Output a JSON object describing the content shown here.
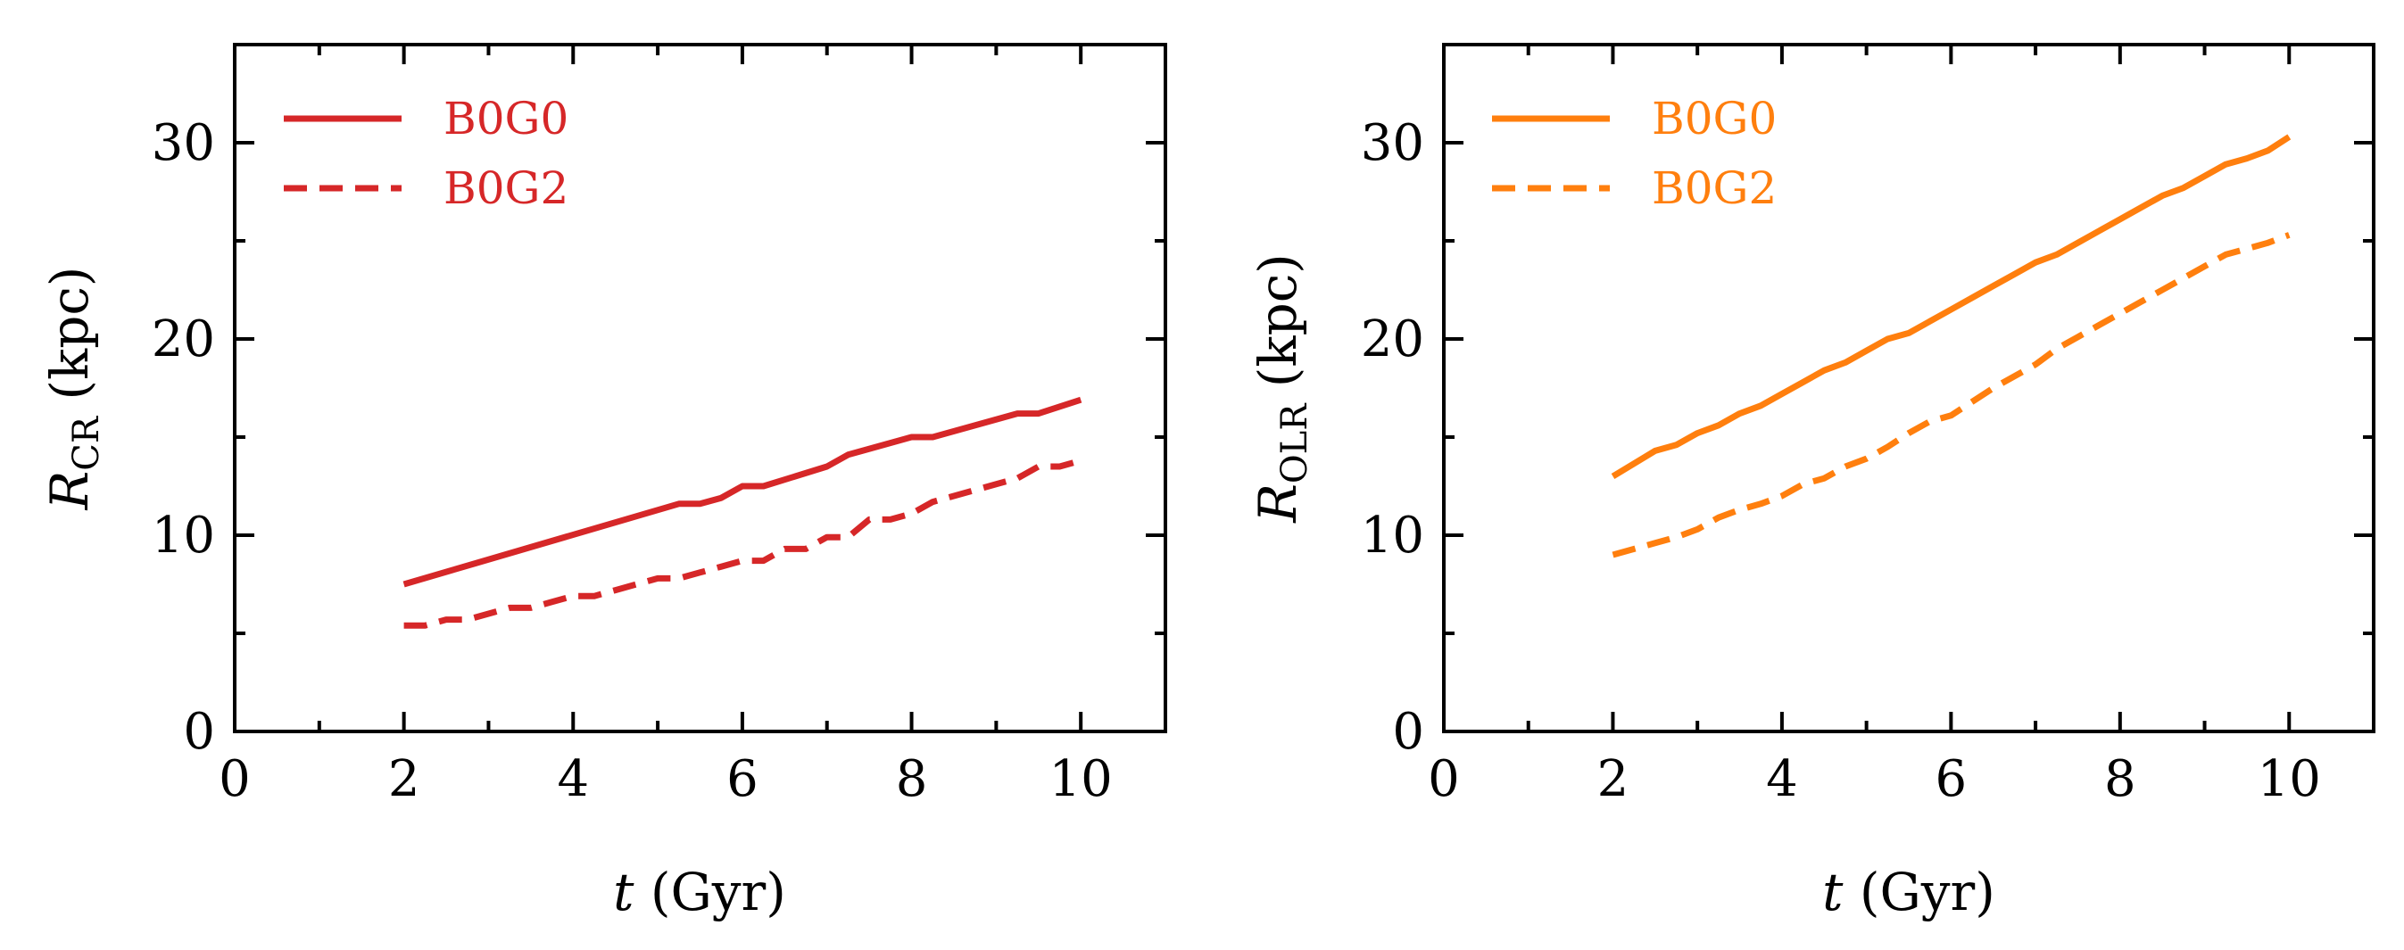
{
  "chart_data": [
    {
      "type": "line",
      "panel": "left",
      "xlabel": "t (Gyr)",
      "xlabel_italic": "t",
      "xlabel_rest": " (Gyr)",
      "ylabel": "R_CR (kpc)",
      "ylabel_main": "R",
      "ylabel_sub": "CR",
      "ylabel_rest": " (kpc)",
      "xlim": [
        0,
        11
      ],
      "ylim": [
        0,
        35
      ],
      "xticks": [
        0,
        2,
        4,
        6,
        8,
        10
      ],
      "yticks": [
        0,
        10,
        20,
        30
      ],
      "color": "#d62728",
      "legend_position": "top-left",
      "series": [
        {
          "name": "B0G0",
          "style": "solid",
          "x": [
            2,
            5.25,
            5.5,
            5.75,
            6.0,
            6.25,
            7.0,
            7.25,
            8.0,
            8.25,
            9.25,
            9.5,
            10.0
          ],
          "y": [
            7.5,
            11.6,
            11.6,
            11.9,
            12.5,
            12.5,
            13.5,
            14.1,
            15.0,
            15.0,
            16.2,
            16.2,
            16.9
          ]
        },
        {
          "name": "B0G2",
          "style": "dashed",
          "x": [
            2,
            2.25,
            2.5,
            2.75,
            3.0,
            3.25,
            3.5,
            3.75,
            4.0,
            4.25,
            4.5,
            4.75,
            5.0,
            5.25,
            5.5,
            5.75,
            6.0,
            6.25,
            6.5,
            6.75,
            7.0,
            7.25,
            7.5,
            7.75,
            8.0,
            8.25,
            8.5,
            8.75,
            9.0,
            9.25,
            9.5,
            9.75,
            10.0
          ],
          "y": [
            5.4,
            5.4,
            5.7,
            5.7,
            6.0,
            6.3,
            6.3,
            6.6,
            6.9,
            6.9,
            7.2,
            7.5,
            7.8,
            7.8,
            8.1,
            8.4,
            8.7,
            8.7,
            9.3,
            9.3,
            9.9,
            9.9,
            10.8,
            10.8,
            11.1,
            11.7,
            12.0,
            12.3,
            12.6,
            12.9,
            13.5,
            13.5,
            13.8
          ]
        }
      ]
    },
    {
      "type": "line",
      "panel": "right",
      "xlabel": "t (Gyr)",
      "xlabel_italic": "t",
      "xlabel_rest": " (Gyr)",
      "ylabel": "R_OLR (kpc)",
      "ylabel_main": "R",
      "ylabel_sub": "OLR",
      "ylabel_rest": " (kpc)",
      "xlim": [
        0,
        11
      ],
      "ylim": [
        0,
        35
      ],
      "xticks": [
        0,
        2,
        4,
        6,
        8,
        10
      ],
      "yticks": [
        0,
        10,
        20,
        30
      ],
      "color": "#ff7f0e",
      "legend_position": "top-left",
      "series": [
        {
          "name": "B0G0",
          "style": "solid",
          "x": [
            2,
            2.5,
            2.75,
            3.0,
            3.25,
            3.5,
            3.75,
            4.0,
            4.25,
            4.5,
            4.75,
            5.0,
            5.25,
            5.5,
            5.75,
            6.0,
            6.25,
            6.5,
            6.75,
            7.0,
            7.25,
            7.5,
            7.75,
            8.0,
            8.25,
            8.5,
            8.75,
            9.0,
            9.25,
            9.5,
            9.75,
            10.0
          ],
          "y": [
            13.0,
            14.3,
            14.6,
            15.2,
            15.6,
            16.2,
            16.6,
            17.2,
            17.8,
            18.4,
            18.8,
            19.4,
            20.0,
            20.3,
            20.9,
            21.5,
            22.1,
            22.7,
            23.3,
            23.9,
            24.3,
            24.9,
            25.5,
            26.1,
            26.7,
            27.3,
            27.7,
            28.3,
            28.9,
            29.2,
            29.6,
            30.3
          ]
        },
        {
          "name": "B0G2",
          "style": "dashed",
          "x": [
            2,
            2.5,
            2.75,
            3.0,
            3.25,
            3.5,
            3.75,
            4.0,
            4.25,
            4.5,
            4.75,
            5.0,
            5.25,
            5.5,
            5.75,
            6.0,
            6.25,
            6.5,
            6.75,
            7.0,
            7.25,
            7.5,
            7.75,
            8.0,
            8.25,
            8.5,
            8.75,
            9.0,
            9.25,
            9.5,
            9.75,
            10.0
          ],
          "y": [
            9.0,
            9.6,
            9.9,
            10.3,
            10.9,
            11.3,
            11.6,
            12.0,
            12.6,
            12.9,
            13.5,
            13.9,
            14.5,
            15.2,
            15.8,
            16.1,
            16.8,
            17.5,
            18.1,
            18.7,
            19.5,
            20.1,
            20.7,
            21.3,
            21.9,
            22.5,
            23.1,
            23.7,
            24.3,
            24.6,
            24.9,
            25.3
          ]
        }
      ]
    }
  ]
}
